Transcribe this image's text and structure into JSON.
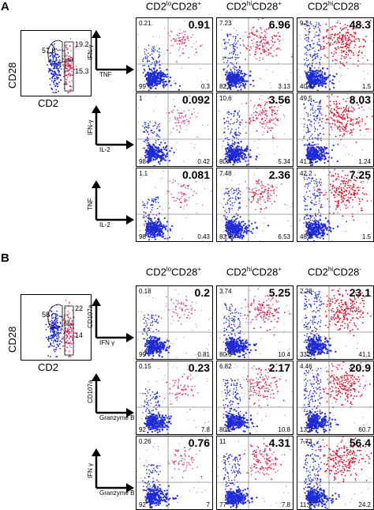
{
  "panels": [
    {
      "letter": "A",
      "gate": {
        "ylabel": "CD28",
        "xlabel": "CD2",
        "n1": "57.8",
        "n2": "19.2",
        "n3": "15.3"
      },
      "columns": [
        {
          "main": "CD2",
          "sup1": "lo",
          "mid": "CD28",
          "sup2": "+"
        },
        {
          "main": "CD2",
          "sup1": "hi",
          "mid": "CD28",
          "sup2": "+"
        },
        {
          "main": "CD2",
          "sup1": "hi",
          "mid": "CD28",
          "sup2": "-"
        }
      ],
      "rows": [
        {
          "ylabel": "IFN-γ",
          "xlabel": "TNF",
          "cells": [
            {
              "tl": "0.21",
              "tr": "0.91",
              "bl": "99",
              "br": "0.3",
              "intensity": 0.2
            },
            {
              "tl": "7.23",
              "tr": "6.96",
              "bl": "82.6",
              "br": "3.13",
              "intensity": 0.55
            },
            {
              "tl": "9.2",
              "tr": "48.3",
              "bl": "40.9",
              "br": "1.5",
              "intensity": 0.95
            }
          ]
        },
        {
          "ylabel": "IFN-γ",
          "xlabel": "IL-2",
          "cells": [
            {
              "tl": "1",
              "tr": "0.092",
              "bl": "98",
              "br": "0.42",
              "intensity": 0.15
            },
            {
              "tl": "10.6",
              "tr": "3.56",
              "bl": "80.4",
              "br": "5.34",
              "intensity": 0.5
            },
            {
              "tl": "49.5",
              "tr": "8.03",
              "bl": "41.2",
              "br": "1.24",
              "intensity": 0.85
            }
          ]
        },
        {
          "ylabel": "TNF",
          "xlabel": "IL-2",
          "cells": [
            {
              "tl": "1.1",
              "tr": "0.081",
              "bl": "98",
              "br": "0.43",
              "intensity": 0.15
            },
            {
              "tl": "7.48",
              "tr": "2.36",
              "bl": "83.6",
              "br": "6.53",
              "intensity": 0.45
            },
            {
              "tl": "42.2",
              "tr": "7.25",
              "bl": "48.5",
              "br": "1.5",
              "intensity": 0.85
            }
          ]
        }
      ]
    },
    {
      "letter": "B",
      "gate": {
        "ylabel": "CD28",
        "xlabel": "CD2",
        "n1": "58",
        "n2": "22",
        "n3": "14"
      },
      "columns": [
        {
          "main": "CD2",
          "sup1": "lo",
          "mid": "CD28",
          "sup2": "+"
        },
        {
          "main": "CD2",
          "sup1": "hi",
          "mid": "CD28",
          "sup2": "+"
        },
        {
          "main": "CD2",
          "sup1": "hi",
          "mid": "CD28",
          "sup2": "-"
        }
      ],
      "rows": [
        {
          "ylabel": "CD107a",
          "xlabel": "IFN γ",
          "cells": [
            {
              "tl": "0.18",
              "tr": "0.2",
              "bl": "99",
              "br": "0.81",
              "intensity": 0.15
            },
            {
              "tl": "3.74",
              "tr": "5.25",
              "bl": "80.6",
              "br": "10.4",
              "intensity": 0.5
            },
            {
              "tl": "2.28",
              "tr": "23.1",
              "bl": "33.5",
              "br": "41.1",
              "intensity": 0.9
            }
          ]
        },
        {
          "ylabel": "CD107a",
          "xlabel": "Granzyme B",
          "cells": [
            {
              "tl": "0.15",
              "tr": "0.23",
              "bl": "92",
              "br": "7.8",
              "intensity": 0.2
            },
            {
              "tl": "6.82",
              "tr": "2.17",
              "bl": "80.2",
              "br": "10.8",
              "intensity": 0.5
            },
            {
              "tl": "4.46",
              "tr": "20.9",
              "bl": "13.9",
              "br": "60.7",
              "intensity": 0.85
            }
          ]
        },
        {
          "ylabel": "IFN γ",
          "xlabel": "Granzyme B",
          "cells": [
            {
              "tl": "0.26",
              "tr": "0.76",
              "bl": "92",
              "br": "7",
              "intensity": 0.2
            },
            {
              "tl": "11",
              "tr": "4.31",
              "bl": "77",
              "br": "7.8",
              "intensity": 0.5
            },
            {
              "tl": "7.73",
              "tr": "56.4",
              "bl": "11.9",
              "br": "24.2",
              "intensity": 0.9
            }
          ]
        }
      ]
    }
  ],
  "colors": {
    "blue": "#1e2bd6",
    "red": "#e0142c",
    "pink": "#d86aa0"
  }
}
